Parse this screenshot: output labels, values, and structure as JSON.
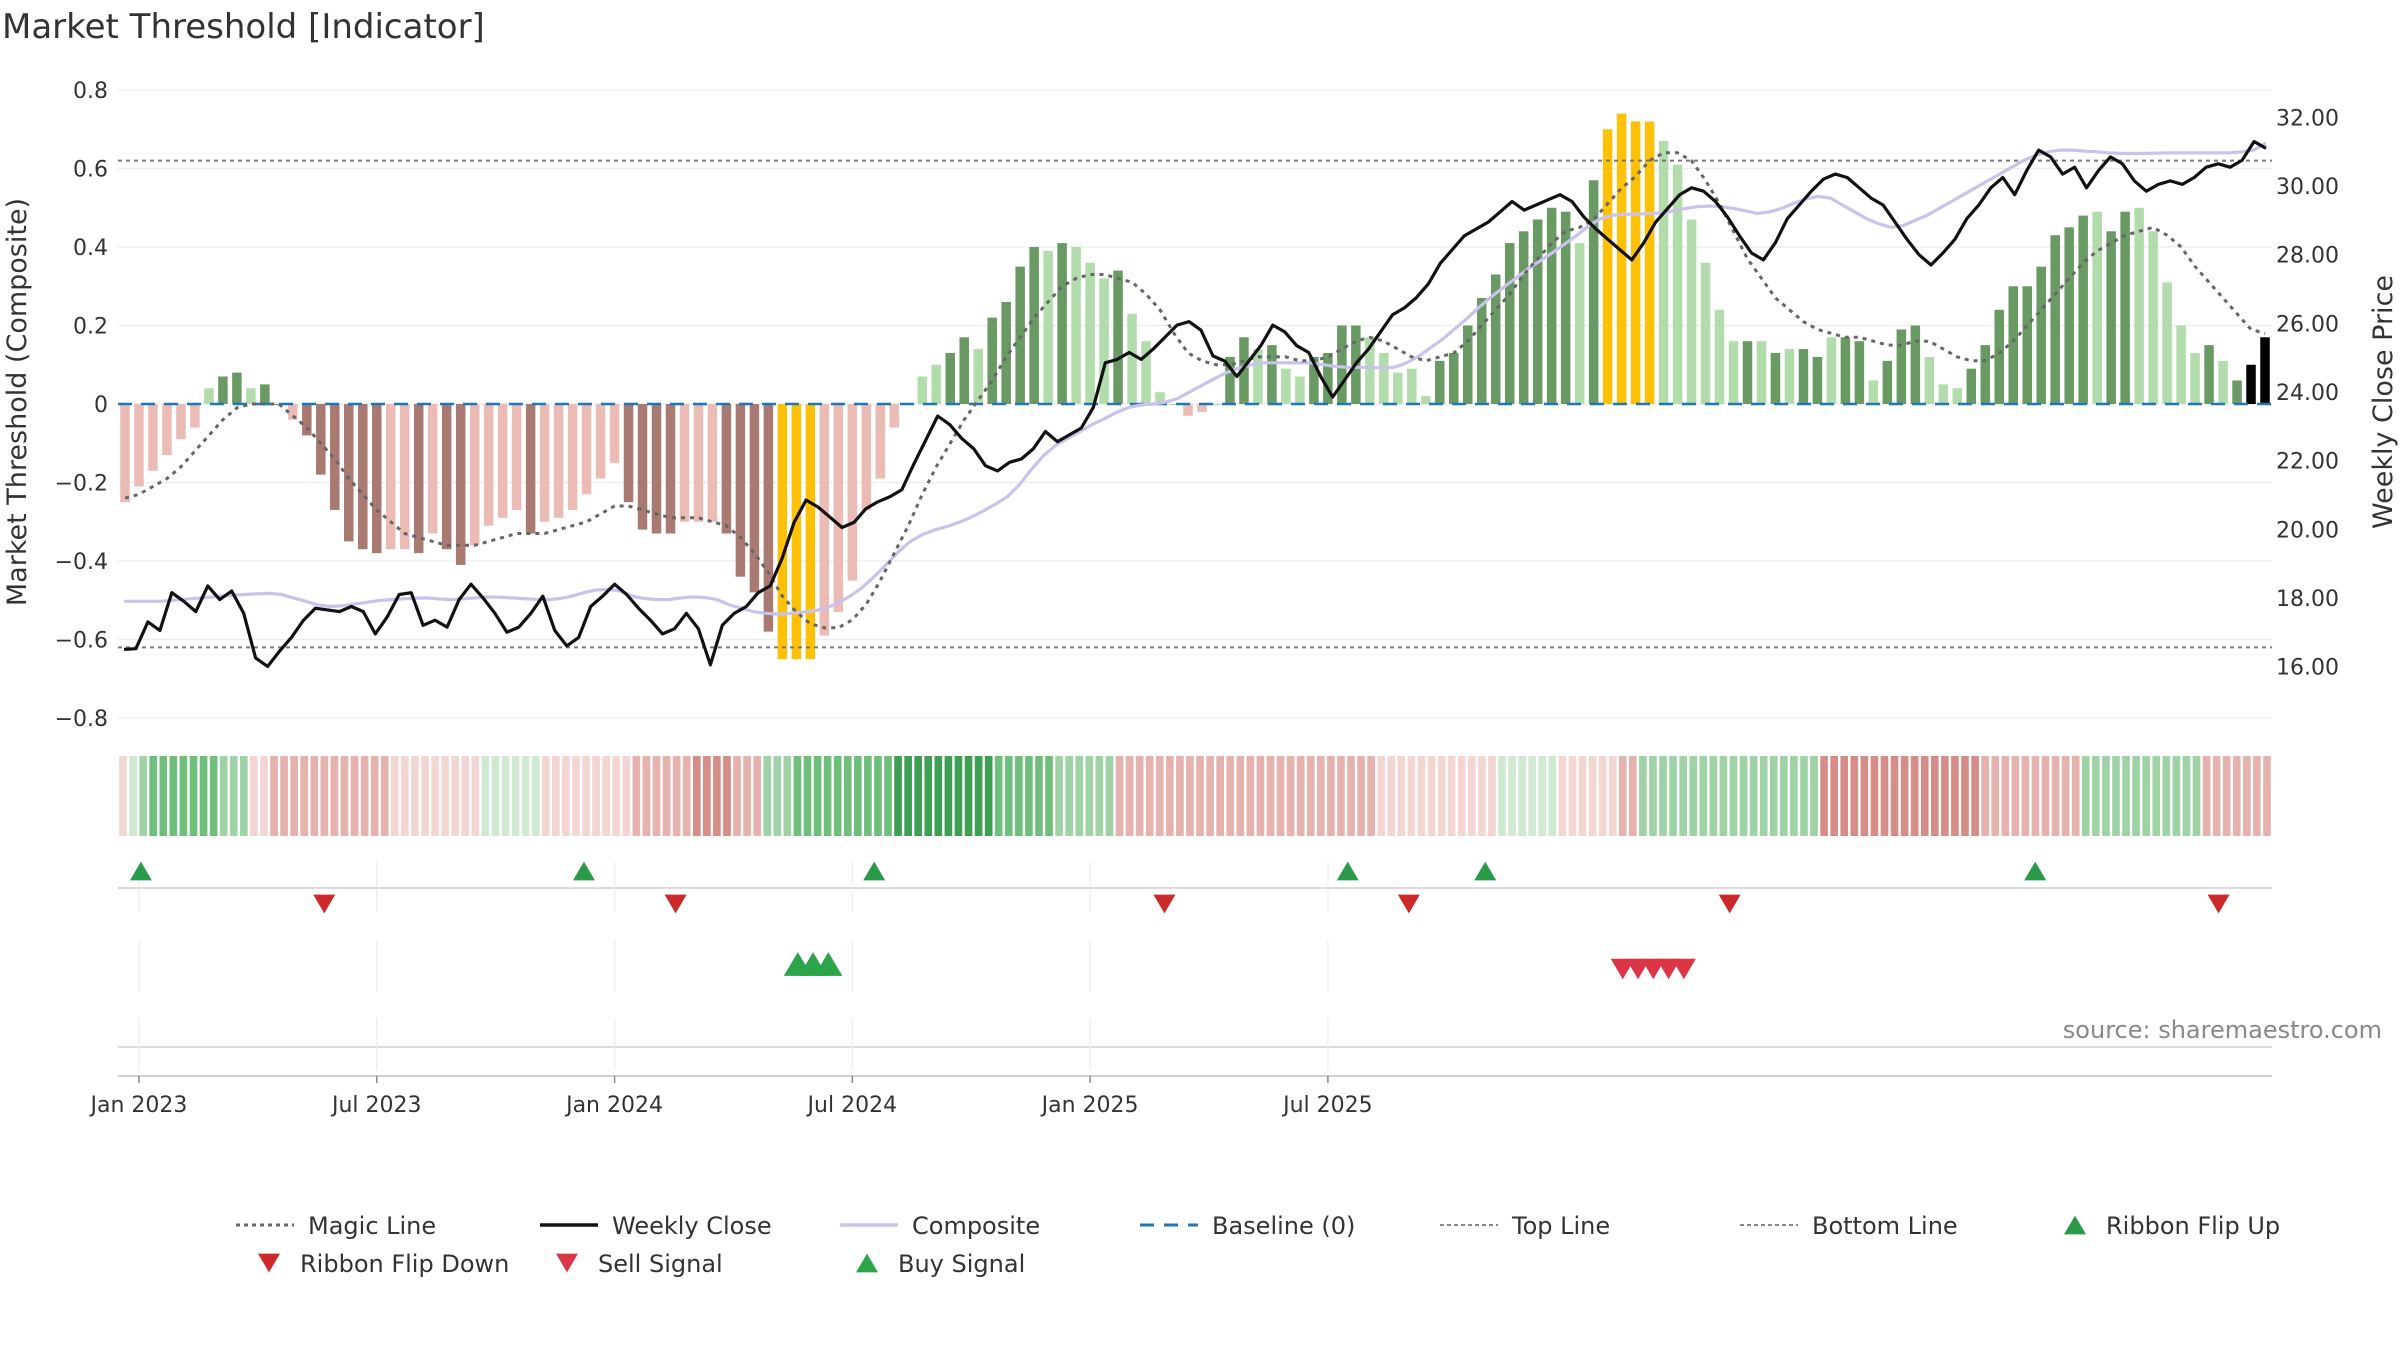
{
  "colors": {
    "bar_strong_pos": "#6a9a64",
    "bar_weak_pos": "#b2dcab",
    "bar_strong_neg": "#a97a72",
    "bar_weak_neg": "#ebbcb6",
    "bar_extreme": "#ffc107",
    "weekly_close": "#111111",
    "composite": "#c9c2ea",
    "magic_line": "#666666",
    "baseline": "#1f77b4",
    "threshold_lines": "#777777",
    "buy": "#2ca44a",
    "sell": "#dc3545",
    "flip_up": "#2a9a48",
    "flip_down": "#cc2a2a"
  },
  "chart_data": {
    "type": "bar",
    "title": "Market Threshold [Indicator]",
    "ylabel_left": "Market Threshold (Composite)",
    "ylabel_right": "Weekly Close Price",
    "ylim_left": [
      -0.8,
      0.8
    ],
    "ylim_right": [
      14.5,
      32.8
    ],
    "left_ticks": [
      "0.8",
      "0.6",
      "0.4",
      "0.2",
      "0",
      "−0.2",
      "−0.4",
      "−0.6",
      "−0.8"
    ],
    "right_ticks": [
      "32.00",
      "30.00",
      "28.00",
      "26.00",
      "24.00",
      "22.00",
      "20.00",
      "18.00",
      "16.00"
    ],
    "x_ticks": [
      "Jan 2023",
      "Jul 2023",
      "Jan 2024",
      "Jul 2024",
      "Jan 2025",
      "Jul 2025"
    ],
    "top_line": 0.62,
    "bottom_line": -0.62,
    "baseline": 0,
    "grid": true,
    "source": "source: sharemaestro.com",
    "series": [
      {
        "name": "Market Threshold",
        "type": "bar",
        "values": [
          -0.25,
          -0.21,
          -0.17,
          -0.13,
          -0.09,
          -0.06,
          0.04,
          0.07,
          0.08,
          0.04,
          0.05,
          0.0,
          -0.04,
          -0.08,
          -0.18,
          -0.27,
          -0.35,
          -0.37,
          -0.38,
          -0.37,
          -0.37,
          -0.38,
          -0.33,
          -0.37,
          -0.41,
          -0.36,
          -0.31,
          -0.29,
          -0.27,
          -0.33,
          -0.3,
          -0.29,
          -0.27,
          -0.23,
          -0.19,
          -0.15,
          -0.25,
          -0.32,
          -0.33,
          -0.33,
          -0.3,
          -0.3,
          -0.3,
          -0.33,
          -0.44,
          -0.48,
          -0.58,
          -0.65,
          -0.65,
          -0.65,
          -0.59,
          -0.53,
          -0.45,
          -0.27,
          -0.19,
          -0.06,
          0.0,
          0.07,
          0.1,
          0.13,
          0.17,
          0.14,
          0.22,
          0.26,
          0.35,
          0.4,
          0.39,
          0.41,
          0.4,
          0.36,
          0.32,
          0.34,
          0.23,
          0.16,
          0.03,
          0.0,
          -0.03,
          -0.02,
          0.0,
          0.12,
          0.17,
          0.14,
          0.15,
          0.09,
          0.07,
          0.12,
          0.13,
          0.2,
          0.2,
          0.17,
          0.13,
          0.08,
          0.09,
          0.02,
          0.11,
          0.13,
          0.2,
          0.27,
          0.33,
          0.41,
          0.44,
          0.47,
          0.5,
          0.49,
          0.41,
          0.57,
          0.7,
          0.74,
          0.72,
          0.72,
          0.67,
          0.61,
          0.47,
          0.36,
          0.24,
          0.16,
          0.16,
          0.16,
          0.13,
          0.14,
          0.14,
          0.12,
          0.17,
          0.17,
          0.16,
          0.06,
          0.11,
          0.19,
          0.2,
          0.12,
          0.05,
          0.04,
          0.09,
          0.15,
          0.24,
          0.3,
          0.3,
          0.35,
          0.43,
          0.45,
          0.48,
          0.49,
          0.44,
          0.49,
          0.5,
          0.44,
          0.31,
          0.2,
          0.13,
          0.15,
          0.11,
          0.06,
          0.1,
          0.17
        ],
        "state": [
          "wn",
          "wn",
          "wn",
          "wn",
          "wn",
          "wn",
          "wp",
          "sp",
          "sp",
          "wp",
          "sp",
          "sp",
          "wn",
          "sn",
          "sn",
          "sn",
          "sn",
          "sn",
          "sn",
          "wn",
          "wn",
          "sn",
          "wn",
          "sn",
          "sn",
          "wn",
          "wn",
          "wn",
          "wn",
          "sn",
          "wn",
          "wn",
          "wn",
          "wn",
          "wn",
          "wn",
          "sn",
          "sn",
          "sn",
          "sn",
          "wn",
          "wn",
          "wn",
          "sn",
          "sn",
          "sn",
          "sn",
          "ex",
          "ex",
          "ex",
          "wn",
          "wn",
          "wn",
          "wn",
          "wn",
          "wn",
          "wn",
          "wp",
          "wp",
          "sp",
          "sp",
          "wp",
          "sp",
          "sp",
          "sp",
          "sp",
          "wp",
          "sp",
          "wp",
          "wp",
          "wp",
          "sp",
          "wp",
          "wp",
          "wp",
          "wp",
          "wn",
          "wn",
          "wp",
          "sp",
          "sp",
          "wp",
          "sp",
          "wp",
          "wp",
          "sp",
          "sp",
          "sp",
          "sp",
          "wp",
          "wp",
          "wp",
          "wp",
          "wp",
          "sp",
          "sp",
          "sp",
          "sp",
          "sp",
          "sp",
          "sp",
          "sp",
          "sp",
          "sp",
          "wp",
          "sp",
          "ex",
          "ex",
          "ex",
          "ex",
          "wp",
          "wp",
          "wp",
          "wp",
          "wp",
          "wp",
          "sp",
          "wp",
          "sp",
          "wp",
          "sp",
          "sp",
          "wp",
          "sp",
          "sp",
          "wp",
          "sp",
          "sp",
          "sp",
          "wp",
          "wp",
          "wp",
          "sp",
          "sp",
          "sp",
          "sp",
          "sp",
          "sp",
          "sp",
          "sp",
          "sp",
          "wp",
          "sp",
          "sp",
          "wp",
          "wp",
          "wp",
          "wp",
          "wp",
          "sp",
          "wp",
          "sp"
        ]
      },
      {
        "name": "Magic Line",
        "type": "line",
        "values": [
          -0.24,
          -0.23,
          -0.21,
          -0.19,
          -0.16,
          -0.12,
          -0.08,
          -0.04,
          -0.01,
          0.0,
          0.0,
          0.0,
          -0.03,
          -0.06,
          -0.1,
          -0.14,
          -0.19,
          -0.23,
          -0.27,
          -0.3,
          -0.33,
          -0.34,
          -0.35,
          -0.36,
          -0.36,
          -0.36,
          -0.35,
          -0.34,
          -0.33,
          -0.33,
          -0.33,
          -0.32,
          -0.31,
          -0.3,
          -0.28,
          -0.26,
          -0.26,
          -0.27,
          -0.28,
          -0.29,
          -0.29,
          -0.29,
          -0.3,
          -0.31,
          -0.34,
          -0.38,
          -0.43,
          -0.49,
          -0.53,
          -0.56,
          -0.57,
          -0.57,
          -0.55,
          -0.51,
          -0.45,
          -0.38,
          -0.31,
          -0.23,
          -0.16,
          -0.1,
          -0.04,
          0.01,
          0.06,
          0.12,
          0.17,
          0.22,
          0.26,
          0.3,
          0.32,
          0.33,
          0.33,
          0.32,
          0.31,
          0.28,
          0.24,
          0.18,
          0.13,
          0.11,
          0.1,
          0.1,
          0.11,
          0.12,
          0.12,
          0.12,
          0.11,
          0.11,
          0.12,
          0.14,
          0.16,
          0.17,
          0.16,
          0.14,
          0.12,
          0.11,
          0.12,
          0.13,
          0.16,
          0.2,
          0.24,
          0.28,
          0.33,
          0.37,
          0.41,
          0.44,
          0.45,
          0.47,
          0.51,
          0.55,
          0.58,
          0.62,
          0.64,
          0.64,
          0.62,
          0.57,
          0.51,
          0.44,
          0.37,
          0.32,
          0.27,
          0.24,
          0.21,
          0.19,
          0.18,
          0.17,
          0.17,
          0.16,
          0.15,
          0.15,
          0.16,
          0.16,
          0.14,
          0.12,
          0.11,
          0.11,
          0.13,
          0.16,
          0.2,
          0.24,
          0.28,
          0.32,
          0.36,
          0.39,
          0.41,
          0.43,
          0.44,
          0.45,
          0.43,
          0.4,
          0.35,
          0.31,
          0.27,
          0.23,
          0.19,
          0.18
        ]
      },
      {
        "name": "Composite",
        "type": "line",
        "values": [
          17.9,
          17.9,
          17.9,
          17.9,
          17.93,
          17.96,
          17.99,
          18.02,
          18.05,
          18.08,
          18.1,
          18.12,
          18.13,
          18.1,
          18.0,
          17.9,
          17.8,
          17.75,
          17.77,
          17.82,
          17.87,
          17.92,
          17.95,
          17.97,
          17.99,
          18.0,
          17.97,
          17.95,
          17.97,
          18.0,
          18.03,
          18.02,
          18.0,
          17.98,
          17.96,
          17.95,
          17.98,
          18.05,
          18.15,
          18.23,
          18.25,
          18.2,
          18.05,
          17.98,
          17.95,
          17.95,
          18.0,
          18.03,
          18.01,
          17.95,
          17.8,
          17.7,
          17.6,
          17.55,
          17.53,
          17.55,
          17.58,
          17.62,
          17.7,
          17.85,
          18.05,
          18.3,
          18.62,
          18.98,
          19.35,
          19.65,
          19.85,
          19.98,
          20.08,
          20.2,
          20.35,
          20.53,
          20.73,
          20.95,
          21.3,
          21.75,
          22.15,
          22.45,
          22.65,
          22.85,
          23.05,
          23.22,
          23.4,
          23.55,
          23.62,
          23.65,
          23.7,
          23.8,
          23.99,
          24.18,
          24.37,
          24.55,
          24.68,
          24.78,
          24.85,
          24.85,
          24.85,
          24.85,
          24.85,
          24.8,
          24.75,
          24.72,
          24.72,
          24.72,
          24.7,
          24.72,
          24.85,
          25.05,
          25.3,
          25.55,
          25.85,
          26.15,
          26.48,
          26.78,
          27.05,
          27.32,
          27.58,
          27.82,
          28.05,
          28.3,
          28.55,
          28.83,
          29.05,
          29.15,
          29.18,
          29.18,
          29.2,
          29.22,
          29.28,
          29.35,
          29.4,
          29.42,
          29.4,
          29.35,
          29.28,
          29.2,
          29.25,
          29.35,
          29.5,
          29.63,
          29.7,
          29.65,
          29.45,
          29.25,
          29.05,
          28.9,
          28.8,
          28.85,
          29.0,
          29.15,
          29.35,
          29.55,
          29.75,
          29.95,
          30.15,
          30.35,
          30.55,
          30.75,
          30.9,
          31.0,
          31.05,
          31.05,
          31.02,
          31.0,
          30.97,
          30.95,
          30.95,
          30.95,
          30.96,
          30.97,
          30.97,
          30.97,
          30.97,
          30.97,
          30.97,
          31.0,
          31.05,
          31.25
        ]
      },
      {
        "name": "Weekly Close",
        "type": "line",
        "values": [
          16.5,
          16.52,
          17.3,
          17.05,
          18.15,
          17.9,
          17.6,
          18.35,
          17.95,
          18.2,
          17.55,
          16.25,
          16.0,
          16.45,
          16.85,
          17.35,
          17.7,
          17.65,
          17.6,
          17.75,
          17.6,
          16.95,
          17.45,
          18.1,
          18.15,
          17.2,
          17.35,
          17.15,
          17.95,
          18.4,
          18.0,
          17.55,
          17.0,
          17.15,
          17.55,
          18.05,
          17.05,
          16.6,
          16.85,
          17.75,
          18.05,
          18.4,
          18.1,
          17.7,
          17.35,
          16.95,
          17.1,
          17.55,
          17.1,
          16.05,
          17.2,
          17.55,
          17.75,
          18.15,
          18.35,
          19.15,
          20.2,
          20.85,
          20.65,
          20.35,
          20.05,
          20.2,
          20.6,
          20.8,
          20.95,
          21.15,
          21.9,
          22.6,
          23.3,
          23.05,
          22.65,
          22.35,
          21.85,
          21.7,
          21.95,
          22.05,
          22.35,
          22.85,
          22.55,
          22.75,
          22.95,
          23.55,
          24.85,
          24.95,
          25.15,
          24.95,
          25.25,
          25.6,
          25.95,
          26.05,
          25.8,
          25.05,
          24.9,
          24.45,
          24.9,
          25.35,
          25.95,
          25.75,
          25.35,
          25.15,
          24.45,
          23.85,
          24.35,
          24.85,
          25.25,
          25.75,
          26.25,
          26.45,
          26.75,
          27.15,
          27.75,
          28.15,
          28.55,
          28.75,
          28.95,
          29.25,
          29.55,
          29.3,
          29.45,
          29.6,
          29.75,
          29.55,
          29.1,
          28.75,
          28.45,
          28.15,
          27.85,
          28.35,
          28.95,
          29.35,
          29.75,
          29.95,
          29.85,
          29.55,
          29.1,
          28.55,
          28.05,
          27.85,
          28.35,
          29.05,
          29.45,
          29.85,
          30.2,
          30.35,
          30.25,
          29.95,
          29.65,
          29.45,
          28.95,
          28.45,
          28.0,
          27.7,
          28.05,
          28.45,
          29.05,
          29.45,
          29.95,
          30.25,
          29.75,
          30.45,
          31.05,
          30.85,
          30.35,
          30.55,
          29.95,
          30.45,
          30.85,
          30.65,
          30.15,
          29.85,
          30.05,
          30.15,
          30.05,
          30.25,
          30.55,
          30.65,
          30.55,
          30.75,
          31.3,
          31.1
        ]
      }
    ],
    "ribbon": {
      "name": "Ribbon",
      "values": [
        -1,
        1,
        2,
        3,
        3,
        3,
        3,
        3,
        3,
        3,
        2,
        2,
        2,
        -1,
        -1,
        -2,
        -2,
        -2,
        -2,
        -2,
        -2,
        -2,
        -2,
        -2,
        -2,
        -2,
        -2,
        -1,
        -1,
        -1,
        -1,
        -1,
        -1,
        -1,
        -1,
        -1,
        1,
        1,
        1,
        1,
        1,
        1,
        -1,
        -1,
        -1,
        -1,
        -1,
        -1,
        -1,
        -1,
        -1,
        -2,
        -2,
        -2,
        -2,
        -2,
        -2,
        -3,
        -3,
        -3,
        -3,
        -2,
        -2,
        -2,
        2,
        2,
        2,
        3,
        3,
        3,
        3,
        3,
        3,
        3,
        3,
        3,
        3,
        4,
        4,
        4,
        4,
        4,
        4,
        4,
        4,
        4,
        4,
        3,
        3,
        3,
        3,
        3,
        3,
        2,
        2,
        2,
        2,
        2,
        2,
        -2,
        -2,
        -2,
        -2,
        -2,
        -2,
        -2,
        -2,
        -2,
        -2,
        -2,
        -2,
        -2,
        -2,
        -2,
        -2,
        -2,
        -2,
        -2,
        -2,
        -2,
        -2,
        -2,
        -2,
        -2,
        -2,
        -1,
        -1,
        -1,
        -1,
        -1,
        -1,
        -1,
        -1,
        -1,
        -1,
        -1,
        -1,
        1,
        1,
        1,
        1,
        1,
        1,
        -1,
        -1,
        -1,
        -1,
        -1,
        -1,
        -2,
        -2,
        2,
        2,
        2,
        2,
        2,
        2,
        2,
        2,
        2,
        2,
        2,
        2,
        2,
        2,
        2,
        2,
        2,
        2,
        -3,
        -3,
        -3,
        -3,
        -3,
        -3,
        -3,
        -3,
        -3,
        -3,
        -3,
        -3,
        -3,
        -3,
        -3,
        -3,
        -2,
        -2,
        -2,
        -2,
        -2,
        -2,
        -2,
        -2,
        -2,
        -2,
        2,
        2,
        2,
        2,
        2,
        2,
        2,
        2,
        2,
        2,
        2,
        2,
        -2,
        -2,
        -2,
        -2,
        -2,
        -2,
        -2
      ]
    },
    "markers": {
      "ribbon_flip_up": [
        1,
        30,
        49,
        80,
        89,
        125
      ],
      "ribbon_flip_down": [
        13,
        36,
        68,
        84,
        105,
        137
      ],
      "buy_signal": [
        44,
        45,
        46
      ],
      "sell_signal": [
        98,
        99,
        100,
        101,
        102
      ]
    },
    "legend": [
      {
        "label": "Magic Line",
        "kind": "dotted",
        "color": "#666666"
      },
      {
        "label": "Weekly Close",
        "kind": "solid",
        "color": "#111111"
      },
      {
        "label": "Composite",
        "kind": "solid",
        "color": "#c9c2ea"
      },
      {
        "label": "Baseline (0)",
        "kind": "dashed",
        "color": "#1f77b4"
      },
      {
        "label": "Top Line",
        "kind": "dotted_light",
        "color": "#888888"
      },
      {
        "label": "Bottom Line",
        "kind": "dotted_light",
        "color": "#888888"
      },
      {
        "label": "Ribbon Flip Up",
        "kind": "tri_up",
        "color": "#2a9a48"
      },
      {
        "label": "Ribbon Flip Down",
        "kind": "tri_down",
        "color": "#cc2a2a"
      },
      {
        "label": "Sell Signal",
        "kind": "tri_down",
        "color": "#dc3545"
      },
      {
        "label": "Buy Signal",
        "kind": "tri_up",
        "color": "#2ca44a"
      }
    ]
  }
}
